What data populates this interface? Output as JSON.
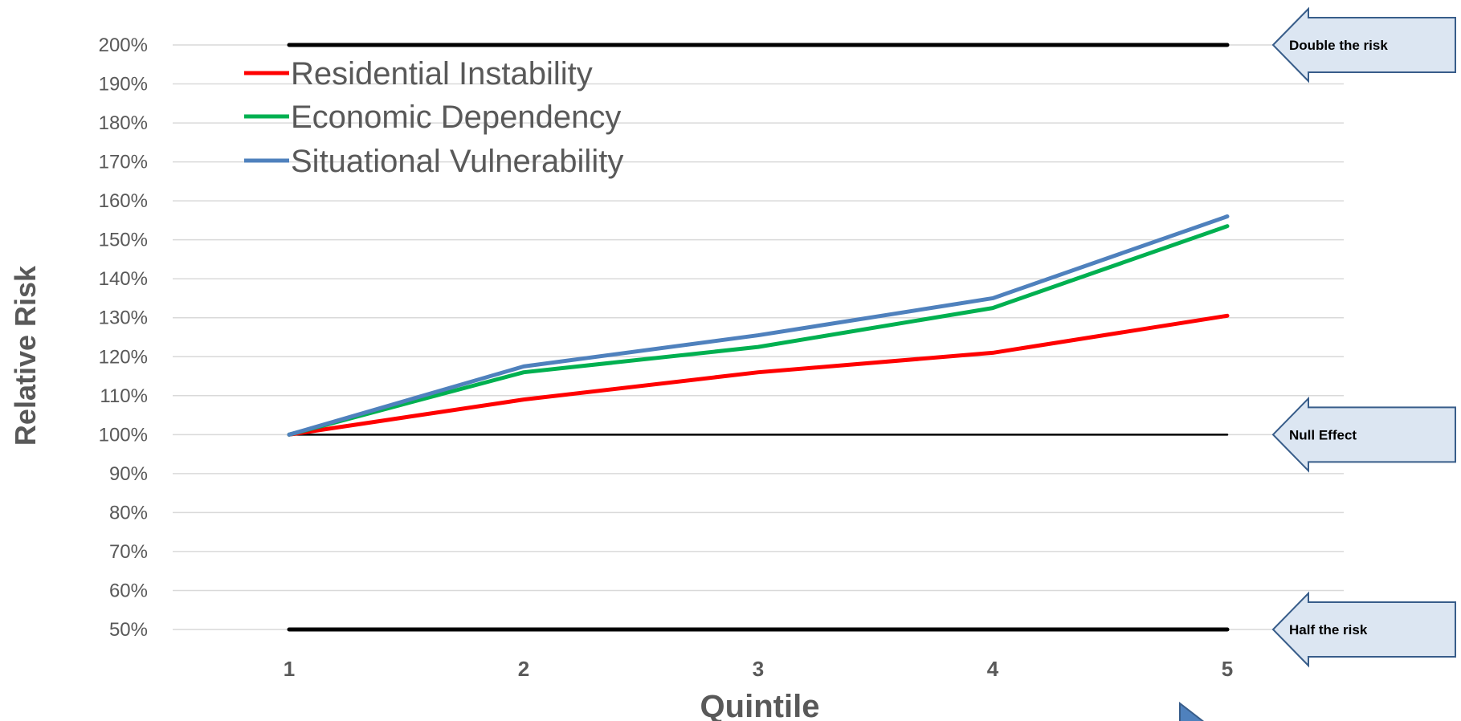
{
  "chart_data": {
    "type": "line",
    "xlabel": "Quintile",
    "ylabel": "Relative Risk",
    "categories": [
      "1",
      "2",
      "3",
      "4",
      "5"
    ],
    "y_ticks": [
      "50%",
      "60%",
      "70%",
      "80%",
      "90%",
      "100%",
      "110%",
      "120%",
      "130%",
      "140%",
      "150%",
      "160%",
      "170%",
      "180%",
      "190%",
      "200%"
    ],
    "ylim": [
      50,
      200
    ],
    "y_unit": "%",
    "grid": true,
    "legend_position": "top-left",
    "series": [
      {
        "name": "Residential Instability",
        "color": "#ff0000",
        "values": [
          100,
          109,
          116,
          121,
          130.5
        ]
      },
      {
        "name": "Economic Dependency",
        "color": "#00b050",
        "values": [
          100,
          116,
          122.5,
          132.5,
          153.5
        ]
      },
      {
        "name": "Situational Vulnerability",
        "color": "#4f81bd",
        "values": [
          100,
          117.5,
          125.5,
          135,
          156
        ]
      }
    ],
    "reference_lines": [
      {
        "value": 200,
        "label": "Double the risk",
        "color": "#000000"
      },
      {
        "value": 100,
        "label": "Null Effect",
        "color": "#000000"
      },
      {
        "value": 50,
        "label": "Half the risk",
        "color": "#000000"
      }
    ],
    "callout_fill": "#dce6f2",
    "callout_stroke": "#385d8a"
  }
}
